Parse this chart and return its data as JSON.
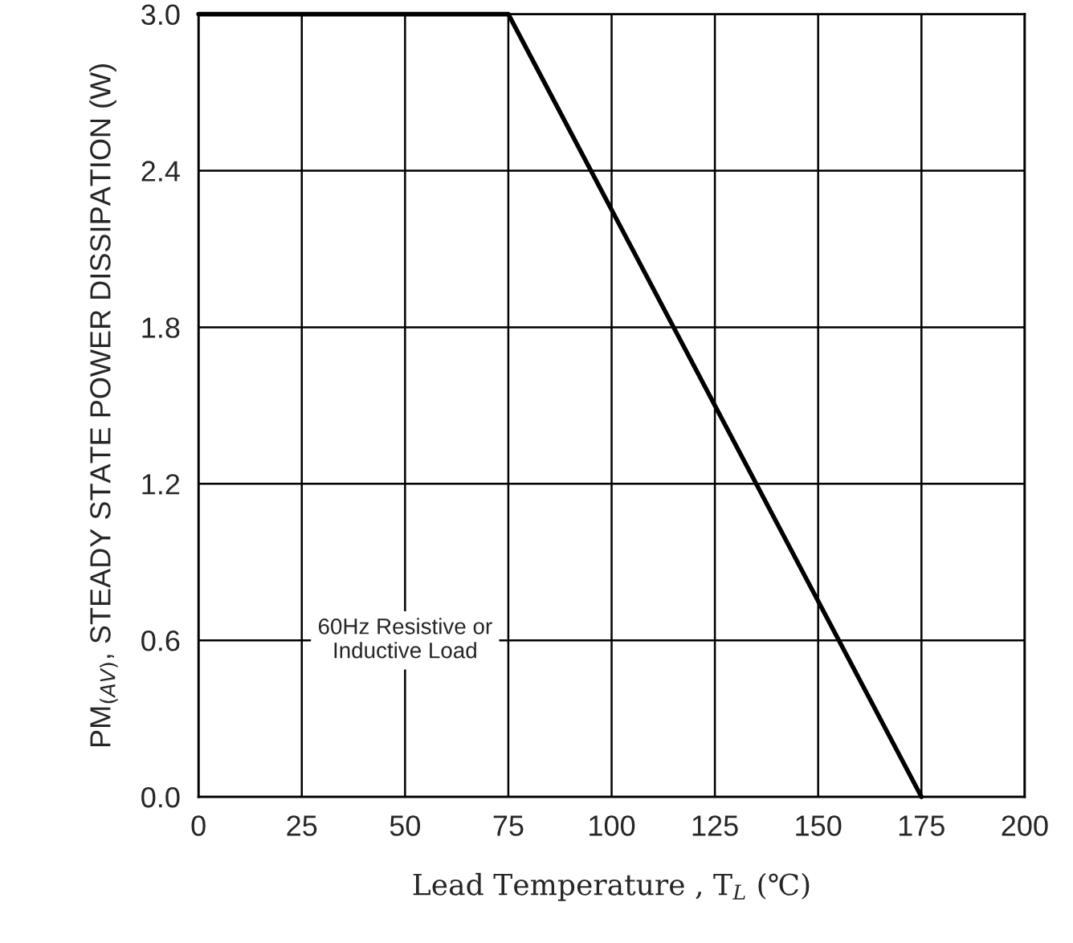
{
  "chart_data": {
    "type": "line",
    "x": [
      0,
      75,
      175
    ],
    "series": [
      {
        "color": "#000000",
        "values": [
          3.0,
          3.0,
          0.0
        ]
      }
    ],
    "xlabel": "Lead Temperature , T$_{L}$ (℃)",
    "ylabel": "PM$_{(AV)}$, STEADY STATE POWER DISSIPATION (W)",
    "annotations": [
      "60Hz Resistive or\nInductive Load"
    ],
    "xlim": [
      0,
      200
    ],
    "xticks": [
      0,
      25,
      50,
      75,
      100,
      125,
      150,
      175,
      200
    ],
    "ylim": [
      0,
      3.0
    ],
    "yticks": [
      {
        "value": 0,
        "label": "0.0"
      },
      {
        "value": 0.6,
        "label": "0.6"
      },
      {
        "value": 1.2,
        "label": "1.2"
      },
      {
        "value": 1.8,
        "label": "1.8"
      },
      {
        "value": 2.4,
        "label": "2.4"
      },
      {
        "value": 3.0,
        "label": "3.0"
      }
    ],
    "grid": true,
    "marker": "none",
    "line_style": "solid"
  }
}
